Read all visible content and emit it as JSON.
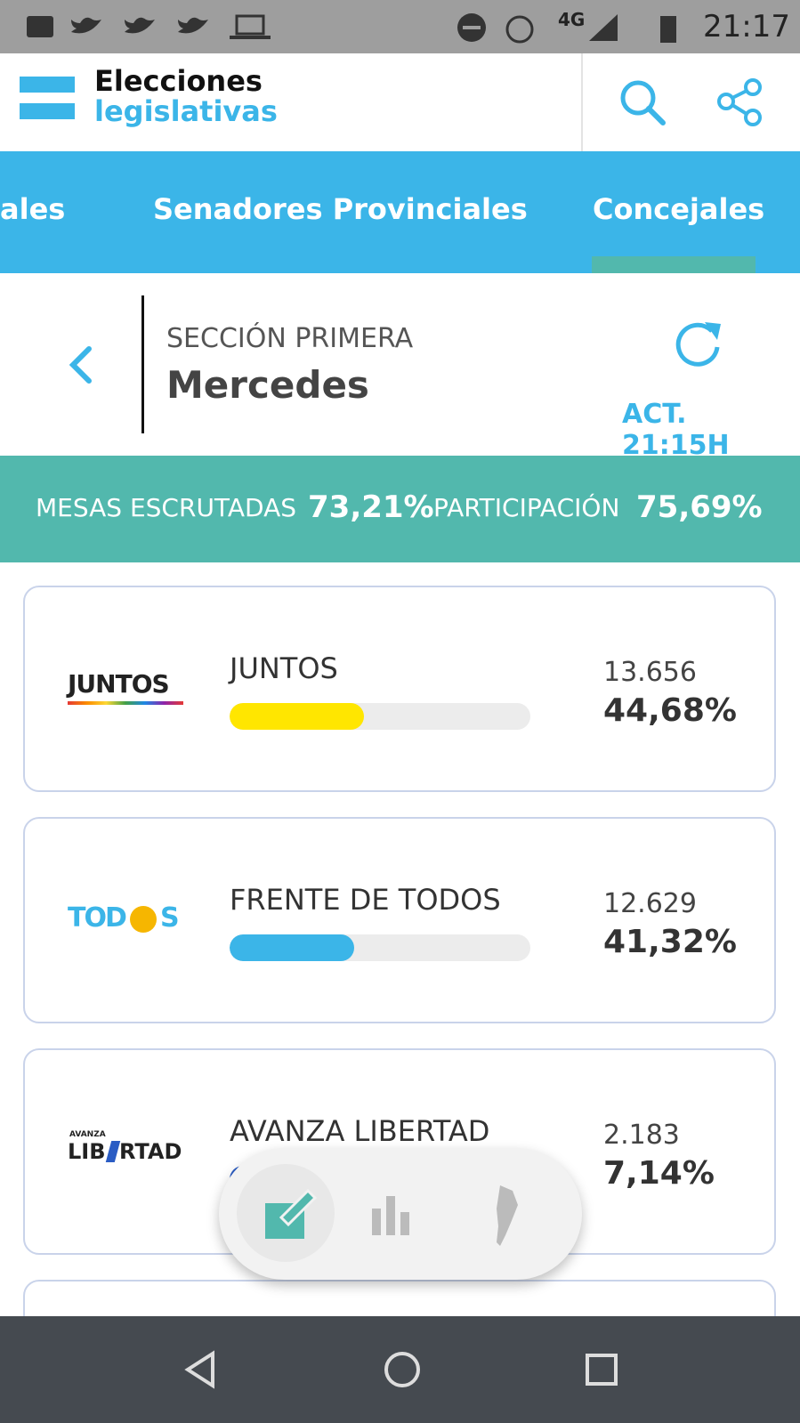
{
  "status_bar": {
    "network": "4G",
    "time": "21:17"
  },
  "header": {
    "title_line1": "Elecciones",
    "title_line2": "legislativas"
  },
  "tabs": [
    "ales",
    "Senadores Provinciales",
    "Concejales"
  ],
  "section": {
    "name": "SECCIÓN PRIMERA",
    "district": "Mercedes",
    "updated": "ACT. 21:15H"
  },
  "stats": {
    "counted_label": "MESAS ESCRUTADAS",
    "counted_value": "73,21%",
    "turnout_label": "PARTICIPACIÓN",
    "turnout_value": "75,69%"
  },
  "parties": [
    {
      "logo": [
        "JUNTOS"
      ],
      "name": "JUNTOS",
      "votes": "13.656",
      "percent": {
        "value": 44.68,
        "label": "44,68%"
      },
      "color": "#ffe600"
    },
    {
      "logo": [
        "TOD",
        "S"
      ],
      "name": "FRENTE DE TODOS",
      "votes": "12.629",
      "percent": {
        "value": 41.32,
        "label": "41,32%"
      },
      "color": "#3bb5e8"
    },
    {
      "logo": [
        "AVANZA",
        "LIB",
        "RTAD"
      ],
      "name": "AVANZA LIBERTAD",
      "votes": "2.183",
      "percent": {
        "value": 7.14,
        "label": "7,14%"
      },
      "color": "#2a5cc4"
    }
  ]
}
